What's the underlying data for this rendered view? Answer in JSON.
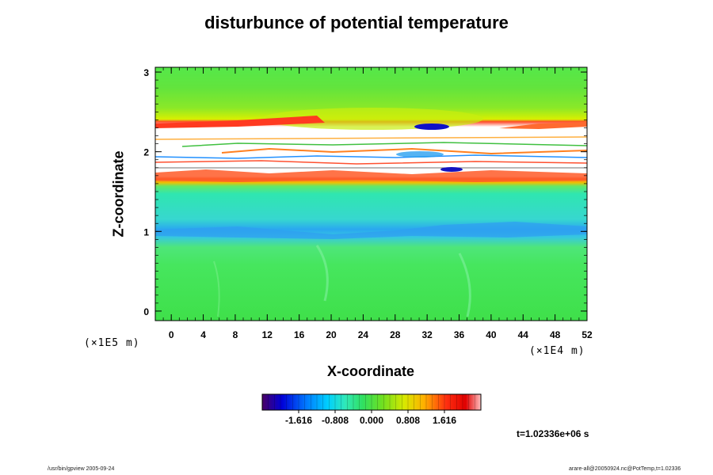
{
  "chart_data": {
    "type": "heatmap",
    "title": "disturbunce of potential temperature",
    "xlabel": "X-coordinate",
    "ylabel": "Z-coordinate",
    "x_unit": "(×1E4 m)",
    "y_unit": "(×1E5 m)",
    "xlim": [
      -2,
      52
    ],
    "ylim": [
      -0.12,
      3.06
    ],
    "x_ticks": [
      "0",
      "4",
      "8",
      "12",
      "16",
      "20",
      "24",
      "28",
      "32",
      "36",
      "40",
      "44",
      "48",
      "52"
    ],
    "y_ticks": [
      "0",
      "1",
      "2",
      "3"
    ],
    "x_tick_values": [
      0,
      4,
      8,
      12,
      16,
      20,
      24,
      28,
      32,
      36,
      40,
      44,
      48,
      52
    ],
    "y_tick_values": [
      0,
      1,
      2,
      3
    ],
    "colorbar": {
      "labels": [
        "-1.616",
        "-0.808",
        "0.000",
        "0.808",
        "1.616"
      ],
      "values": [
        -1.616,
        -0.808,
        0,
        0.808,
        1.616
      ],
      "range": [
        -2.424,
        2.424
      ]
    },
    "field_bands": [
      {
        "z": [
          2.5,
          3.06
        ],
        "level": 0.25
      },
      {
        "z": [
          2.3,
          2.5
        ],
        "level": 0.75
      },
      {
        "z": [
          1.62,
          2.3
        ],
        "level": 2.4
      },
      {
        "z": [
          1.55,
          1.7
        ],
        "level": 1.3
      },
      {
        "z": [
          1.1,
          1.55
        ],
        "level": -0.45
      },
      {
        "z": [
          0.9,
          1.1
        ],
        "level": -0.75
      },
      {
        "z": [
          -0.12,
          0.9
        ],
        "level": 0.05
      }
    ],
    "time_label": "t=1.02336e+06 s"
  },
  "footer": {
    "left": "/usr/bin/gpview 2005-09-24",
    "right": "arare-all@20050924.nc@PotTemp,t=1.02336"
  },
  "colors": {
    "background": "#ffffff",
    "mid_green": "#3de03d",
    "cyan": "#33e0c0",
    "blue": "#1e90ff",
    "red": "#ff3020"
  }
}
